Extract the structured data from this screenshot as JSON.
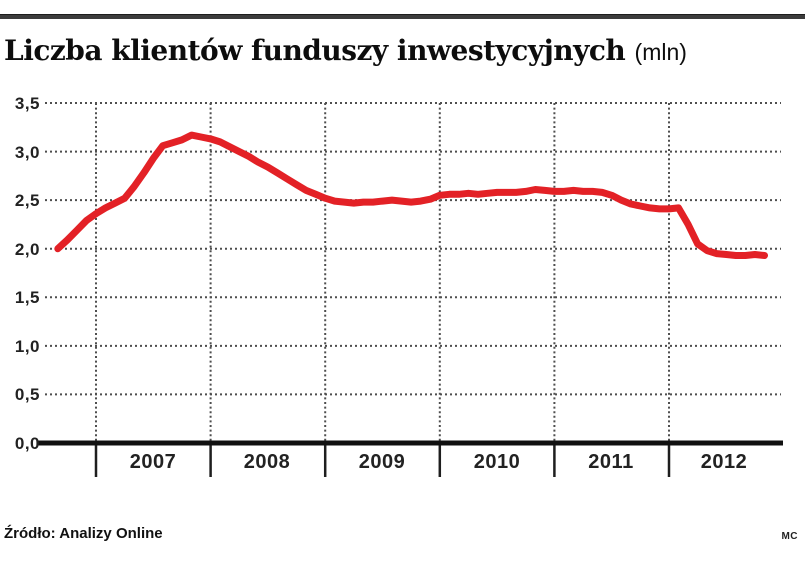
{
  "chart_data": {
    "type": "line",
    "title": "Liczba klientów funduszy inwestycyjnych",
    "title_unit": "(mln)",
    "source": "Źródło: Analizy Online",
    "credit": "MC",
    "ylabel": "",
    "xlabel": "",
    "ylim": [
      0.0,
      3.5
    ],
    "grid": "dotted",
    "legend": "none",
    "line_color": "#e32126",
    "y_tick_labels": [
      "3,5",
      "3,0",
      "2,5",
      "2,0",
      "1,5",
      "1,0",
      "0,5",
      "0,0"
    ],
    "y_gridline_values": [
      3.5,
      3.0,
      2.5,
      2.0,
      1.5,
      1.0,
      0.5
    ],
    "x_tick_labels": [
      "2007",
      "2008",
      "2009",
      "2010",
      "2011",
      "2012"
    ],
    "x_gridline_years": [
      2007,
      2008,
      2009,
      2010,
      2011,
      2012
    ],
    "series": [
      {
        "name": "Liczba klientów (mln)",
        "points": [
          {
            "t": 2006.667,
            "v": 2.0
          },
          {
            "t": 2006.75,
            "v": 2.09
          },
          {
            "t": 2006.833,
            "v": 2.19
          },
          {
            "t": 2006.917,
            "v": 2.29
          },
          {
            "t": 2007.0,
            "v": 2.36
          },
          {
            "t": 2007.083,
            "v": 2.42
          },
          {
            "t": 2007.167,
            "v": 2.47
          },
          {
            "t": 2007.25,
            "v": 2.52
          },
          {
            "t": 2007.333,
            "v": 2.64
          },
          {
            "t": 2007.417,
            "v": 2.78
          },
          {
            "t": 2007.5,
            "v": 2.93
          },
          {
            "t": 2007.583,
            "v": 3.06
          },
          {
            "t": 2007.667,
            "v": 3.09
          },
          {
            "t": 2007.75,
            "v": 3.12
          },
          {
            "t": 2007.833,
            "v": 3.17
          },
          {
            "t": 2007.917,
            "v": 3.15
          },
          {
            "t": 2008.0,
            "v": 3.13
          },
          {
            "t": 2008.083,
            "v": 3.1
          },
          {
            "t": 2008.167,
            "v": 3.05
          },
          {
            "t": 2008.25,
            "v": 3.0
          },
          {
            "t": 2008.333,
            "v": 2.95
          },
          {
            "t": 2008.417,
            "v": 2.89
          },
          {
            "t": 2008.5,
            "v": 2.84
          },
          {
            "t": 2008.583,
            "v": 2.78
          },
          {
            "t": 2008.667,
            "v": 2.72
          },
          {
            "t": 2008.75,
            "v": 2.66
          },
          {
            "t": 2008.833,
            "v": 2.6
          },
          {
            "t": 2008.917,
            "v": 2.56
          },
          {
            "t": 2009.0,
            "v": 2.52
          },
          {
            "t": 2009.083,
            "v": 2.49
          },
          {
            "t": 2009.167,
            "v": 2.48
          },
          {
            "t": 2009.25,
            "v": 2.47
          },
          {
            "t": 2009.333,
            "v": 2.48
          },
          {
            "t": 2009.417,
            "v": 2.48
          },
          {
            "t": 2009.5,
            "v": 2.49
          },
          {
            "t": 2009.583,
            "v": 2.5
          },
          {
            "t": 2009.667,
            "v": 2.49
          },
          {
            "t": 2009.75,
            "v": 2.48
          },
          {
            "t": 2009.833,
            "v": 2.49
          },
          {
            "t": 2009.917,
            "v": 2.51
          },
          {
            "t": 2010.0,
            "v": 2.55
          },
          {
            "t": 2010.083,
            "v": 2.56
          },
          {
            "t": 2010.167,
            "v": 2.56
          },
          {
            "t": 2010.25,
            "v": 2.57
          },
          {
            "t": 2010.333,
            "v": 2.56
          },
          {
            "t": 2010.417,
            "v": 2.57
          },
          {
            "t": 2010.5,
            "v": 2.58
          },
          {
            "t": 2010.583,
            "v": 2.58
          },
          {
            "t": 2010.667,
            "v": 2.58
          },
          {
            "t": 2010.75,
            "v": 2.59
          },
          {
            "t": 2010.833,
            "v": 2.61
          },
          {
            "t": 2010.917,
            "v": 2.6
          },
          {
            "t": 2011.0,
            "v": 2.59
          },
          {
            "t": 2011.083,
            "v": 2.59
          },
          {
            "t": 2011.167,
            "v": 2.6
          },
          {
            "t": 2011.25,
            "v": 2.59
          },
          {
            "t": 2011.333,
            "v": 2.59
          },
          {
            "t": 2011.417,
            "v": 2.58
          },
          {
            "t": 2011.5,
            "v": 2.55
          },
          {
            "t": 2011.583,
            "v": 2.5
          },
          {
            "t": 2011.667,
            "v": 2.46
          },
          {
            "t": 2011.75,
            "v": 2.44
          },
          {
            "t": 2011.833,
            "v": 2.42
          },
          {
            "t": 2011.917,
            "v": 2.41
          },
          {
            "t": 2012.0,
            "v": 2.41
          },
          {
            "t": 2012.083,
            "v": 2.42
          },
          {
            "t": 2012.167,
            "v": 2.25
          },
          {
            "t": 2012.25,
            "v": 2.05
          },
          {
            "t": 2012.333,
            "v": 1.98
          },
          {
            "t": 2012.417,
            "v": 1.95
          },
          {
            "t": 2012.5,
            "v": 1.94
          },
          {
            "t": 2012.583,
            "v": 1.93
          },
          {
            "t": 2012.667,
            "v": 1.93
          },
          {
            "t": 2012.75,
            "v": 1.94
          },
          {
            "t": 2012.833,
            "v": 1.93
          }
        ]
      }
    ]
  }
}
